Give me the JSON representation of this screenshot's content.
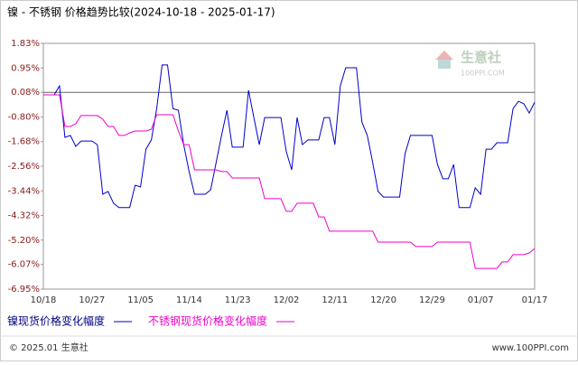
{
  "chart_data": {
    "type": "line",
    "title": "镍 - 不锈钢 价格趋势比较(2024-10-18 - 2025-01-17)",
    "watermark": "生意社",
    "watermark_sub": "100PPI.COM",
    "footer_left": "© 2025.01 生意社",
    "footer_right": "www.100PPI.com",
    "categories": [
      "10/18",
      null,
      null,
      null,
      null,
      null,
      null,
      null,
      null,
      "10/27",
      null,
      null,
      null,
      null,
      null,
      null,
      null,
      null,
      "11/05",
      null,
      null,
      null,
      null,
      null,
      null,
      null,
      null,
      "11/14",
      null,
      null,
      null,
      null,
      null,
      null,
      null,
      null,
      "11/23",
      null,
      null,
      null,
      null,
      null,
      null,
      null,
      null,
      "12/02",
      null,
      null,
      null,
      null,
      null,
      null,
      null,
      null,
      "12/11",
      null,
      null,
      null,
      null,
      null,
      null,
      null,
      null,
      "12/20",
      null,
      null,
      null,
      null,
      null,
      null,
      null,
      null,
      "12/29",
      null,
      null,
      null,
      null,
      null,
      null,
      null,
      null,
      "01/07",
      null,
      null,
      null,
      null,
      null,
      null,
      null,
      null,
      null,
      "01/17"
    ],
    "series": [
      {
        "name": "镍现货价格变化幅度",
        "color": "#0000cc",
        "values": [
          -0.01,
          -0.01,
          -0.01,
          0.31,
          -1.53,
          -1.46,
          -1.85,
          -1.66,
          -1.66,
          -1.66,
          -1.79,
          -3.56,
          -3.46,
          -3.88,
          -4.04,
          -4.04,
          -4.04,
          -3.24,
          -3.3,
          -1.95,
          -1.62,
          -0.5,
          1.06,
          1.06,
          -0.5,
          -0.56,
          -1.79,
          -2.75,
          -3.56,
          -3.56,
          -3.56,
          -3.4,
          -2.43,
          -1.46,
          -0.56,
          -1.88,
          -1.88,
          -1.88,
          0.15,
          -0.82,
          -1.79,
          -0.82,
          -0.82,
          -0.82,
          -0.82,
          -2.04,
          -2.69,
          -0.82,
          -1.79,
          -1.62,
          -1.62,
          -1.62,
          -0.82,
          -0.82,
          -1.79,
          0.31,
          0.96,
          0.96,
          0.96,
          -0.98,
          -1.46,
          -2.43,
          -3.46,
          -3.66,
          -3.66,
          -3.66,
          -3.66,
          -2.11,
          -1.46,
          -1.46,
          -1.46,
          -1.46,
          -1.46,
          -2.5,
          -3.01,
          -3.01,
          -2.5,
          -4.04,
          -4.04,
          -4.04,
          -3.33,
          -3.56,
          -1.95,
          -1.95,
          -1.72,
          -1.72,
          -1.72,
          -0.5,
          -0.24,
          -0.33,
          -0.66,
          -0.27
        ]
      },
      {
        "name": "不锈钢现货价格变化幅度",
        "color": "#ee00cc",
        "values": [
          -0.01,
          -0.01,
          -0.01,
          -0.01,
          -1.14,
          -1.14,
          -1.04,
          -0.75,
          -0.75,
          -0.75,
          -0.75,
          -0.88,
          -1.14,
          -1.14,
          -1.46,
          -1.46,
          -1.37,
          -1.3,
          -1.3,
          -1.3,
          -1.24,
          -0.72,
          -0.72,
          -0.72,
          -0.72,
          -1.3,
          -1.79,
          -1.79,
          -2.69,
          -2.69,
          -2.69,
          -2.69,
          -2.69,
          -2.75,
          -2.75,
          -2.98,
          -2.98,
          -2.98,
          -2.98,
          -2.98,
          -2.98,
          -3.72,
          -3.72,
          -3.72,
          -3.72,
          -4.17,
          -4.17,
          -3.88,
          -3.88,
          -3.88,
          -3.88,
          -4.37,
          -4.37,
          -4.88,
          -4.88,
          -4.88,
          -4.88,
          -4.88,
          -4.88,
          -4.88,
          -4.88,
          -4.88,
          -5.27,
          -5.27,
          -5.27,
          -5.27,
          -5.27,
          -5.27,
          -5.27,
          -5.43,
          -5.43,
          -5.43,
          -5.43,
          -5.27,
          -5.27,
          -5.27,
          -5.27,
          -5.27,
          -5.27,
          -5.27,
          -6.21,
          -6.21,
          -6.21,
          -6.21,
          -6.21,
          -5.98,
          -5.98,
          -5.72,
          -5.72,
          -5.72,
          -5.66,
          -5.5
        ]
      }
    ],
    "ylim": [
      -6.95,
      1.83
    ],
    "yticks": [
      {
        "value": 1.83,
        "label": "1.83%"
      },
      {
        "value": 0.95,
        "label": "0.95%"
      },
      {
        "value": 0.08,
        "label": "0.08%"
      },
      {
        "value": -0.8,
        "label": "-0.80%"
      },
      {
        "value": -1.68,
        "label": "-1.68%"
      },
      {
        "value": -2.56,
        "label": "-2.56%"
      },
      {
        "value": -3.44,
        "label": "-3.44%"
      },
      {
        "value": -4.32,
        "label": "-4.32%"
      },
      {
        "value": -5.2,
        "label": "-5.20%"
      },
      {
        "value": -6.07,
        "label": "-6.07%"
      },
      {
        "value": -6.95,
        "label": "-6.95%"
      }
    ]
  }
}
